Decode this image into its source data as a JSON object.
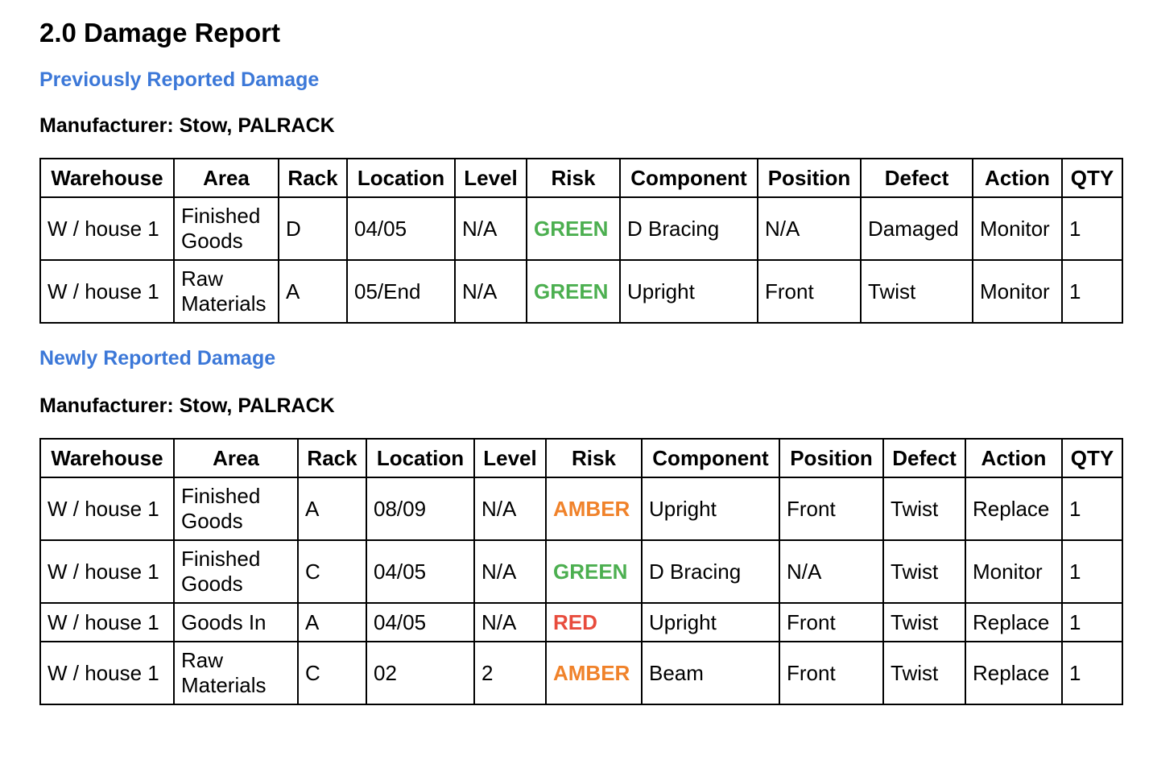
{
  "title": "2.0 Damage Report",
  "sections": [
    {
      "heading": "Previously Reported Damage",
      "manufacturer": "Manufacturer: Stow, PALRACK",
      "table": {
        "columns": [
          "Warehouse",
          "Area",
          "Rack",
          "Location",
          "Level",
          "Risk",
          "Component",
          "Position",
          "Defect",
          "Action",
          "QTY"
        ],
        "rows": [
          [
            "W / house 1",
            "Finished Goods",
            "D",
            "04/05",
            "N/A",
            "GREEN",
            "D Bracing",
            "N/A",
            "Damaged",
            "Monitor",
            "1"
          ],
          [
            "W / house 1",
            "Raw Materials",
            "A",
            "05/End",
            "N/A",
            "GREEN",
            "Upright",
            "Front",
            "Twist",
            "Monitor",
            "1"
          ]
        ],
        "risk_colors": [
          "#4caf50",
          "#4caf50"
        ]
      }
    },
    {
      "heading": "Newly Reported Damage",
      "manufacturer": "Manufacturer: Stow, PALRACK",
      "table": {
        "columns": [
          "Warehouse",
          "Area",
          "Rack",
          "Location",
          "Level",
          "Risk",
          "Component",
          "Position",
          "Defect",
          "Action",
          "QTY"
        ],
        "rows": [
          [
            "W / house 1",
            "Finished Goods",
            "A",
            "08/09",
            "N/A",
            "AMBER",
            "Upright",
            "Front",
            "Twist",
            "Replace",
            "1"
          ],
          [
            "W / house 1",
            "Finished Goods",
            "C",
            "04/05",
            "N/A",
            "GREEN",
            "D Bracing",
            "N/A",
            "Twist",
            "Monitor",
            "1"
          ],
          [
            "W / house 1",
            "Goods In",
            "A",
            "04/05",
            "N/A",
            "RED",
            "Upright",
            "Front",
            "Twist",
            "Replace",
            "1"
          ],
          [
            "W / house 1",
            "Raw Materials",
            "C",
            "02",
            "2",
            "AMBER",
            "Beam",
            "Front",
            "Twist",
            "Replace",
            "1"
          ]
        ],
        "risk_colors": [
          "#f0822a",
          "#4caf50",
          "#e84c3d",
          "#f0822a"
        ]
      }
    }
  ]
}
